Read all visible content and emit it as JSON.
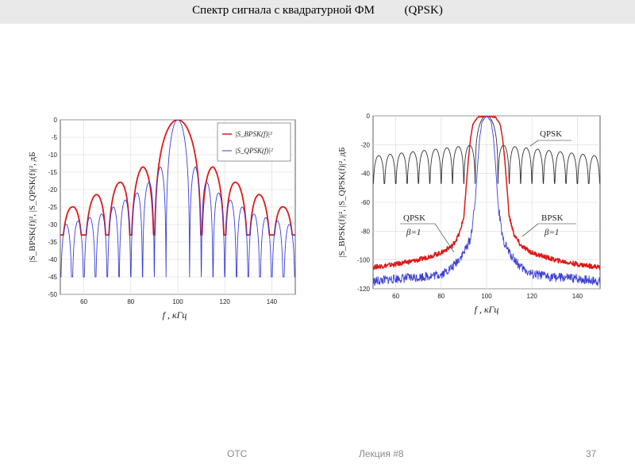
{
  "slide": {
    "title": "Спектр сигнала с квадратурной ФМ          (QPSK)",
    "footer_left": "ОТС",
    "footer_center": "Лекция #8",
    "page_number": "37"
  },
  "colors": {
    "bpsk": "#e01818",
    "qpsk": "#3b3fd6",
    "qpsk_right": "#333333"
  },
  "chart_data": [
    {
      "type": "line",
      "xlabel": "f ,  кГц",
      "ylabel": "|S_BPSK(f)|², |S_QPSK(f)|², дБ",
      "xlim": [
        50,
        150
      ],
      "ylim": [
        -50,
        0
      ],
      "xticks": [
        60,
        80,
        100,
        120,
        140
      ],
      "yticks": [
        0,
        -5,
        -10,
        -15,
        -20,
        -25,
        -30,
        -35,
        -40,
        -45,
        -50
      ],
      "grid": true,
      "legend_position": "top-right",
      "legend": [
        "|S_BPSK(f)|²",
        "|S_QPSK(f)|²"
      ],
      "series": [
        {
          "name": "|S_BPSK(f)|²",
          "color": "#e01818",
          "model": "sinc2",
          "center": 100,
          "null_spacing": 10,
          "floor_db": -33,
          "sidelobe_peaks": [
            {
              "f": 85,
              "db": -13.5
            },
            {
              "f": 115,
              "db": -13.5
            },
            {
              "f": 75,
              "db": -18
            },
            {
              "f": 125,
              "db": -18
            },
            {
              "f": 65,
              "db": -21.5
            },
            {
              "f": 135,
              "db": -21.5
            },
            {
              "f": 55,
              "db": -25
            },
            {
              "f": 145,
              "db": -25
            }
          ]
        },
        {
          "name": "|S_QPSK(f)|²",
          "color": "#3b3fd6",
          "model": "sinc2",
          "center": 100,
          "null_spacing": 5,
          "floor_db": -45,
          "sidelobe_peaks": [
            {
              "f": 92.5,
              "db": -13.5
            },
            {
              "f": 107.5,
              "db": -13.5
            },
            {
              "f": 87.5,
              "db": -18
            },
            {
              "f": 112.5,
              "db": -18
            },
            {
              "f": 82.5,
              "db": -21
            },
            {
              "f": 117.5,
              "db": -21
            },
            {
              "f": 77.5,
              "db": -23
            },
            {
              "f": 122.5,
              "db": -23
            },
            {
              "f": 72.5,
              "db": -25
            },
            {
              "f": 127.5,
              "db": -25
            },
            {
              "f": 67.5,
              "db": -27
            },
            {
              "f": 132.5,
              "db": -27
            },
            {
              "f": 62.5,
              "db": -28
            },
            {
              "f": 137.5,
              "db": -28
            },
            {
              "f": 57.5,
              "db": -29
            },
            {
              "f": 142.5,
              "db": -29
            },
            {
              "f": 52.5,
              "db": -30
            },
            {
              "f": 147.5,
              "db": -30
            }
          ]
        }
      ]
    },
    {
      "type": "line",
      "xlabel": "f ,  кГц",
      "ylabel": "|S_BPSK(f)|², |S_QPSK(f)|², дБ",
      "xlim": [
        50,
        150
      ],
      "ylim": [
        -120,
        0
      ],
      "xticks": [
        60,
        80,
        100,
        120,
        140
      ],
      "yticks": [
        0,
        -20,
        -40,
        -60,
        -80,
        -100,
        -120
      ],
      "grid": true,
      "annotations": [
        "QPSK",
        "QPSK β=1",
        "BPSK β=1"
      ],
      "series": [
        {
          "name": "QPSK",
          "color": "#333333",
          "model": "sinc2",
          "center": 100,
          "null_spacing": 5,
          "floor_db": -47,
          "sidelobe_level_db": -20,
          "sidelobe_edge_db": -28
        },
        {
          "name": "BPSK β=1",
          "color": "#e01818",
          "model": "raised_cosine",
          "center": 100,
          "points": [
            [
              50,
              -105
            ],
            [
              60,
              -103
            ],
            [
              70,
              -100
            ],
            [
              80,
              -95
            ],
            [
              85,
              -90
            ],
            [
              88,
              -82
            ],
            [
              90,
              -70
            ],
            [
              91,
              -50
            ],
            [
              92,
              -30
            ],
            [
              93,
              -15
            ],
            [
              94,
              -6
            ],
            [
              96,
              -1
            ],
            [
              100,
              0
            ],
            [
              104,
              -1
            ],
            [
              106,
              -6
            ],
            [
              107,
              -15
            ],
            [
              108,
              -30
            ],
            [
              109,
              -50
            ],
            [
              110,
              -70
            ],
            [
              112,
              -82
            ],
            [
              115,
              -90
            ],
            [
              120,
              -95
            ],
            [
              130,
              -100
            ],
            [
              140,
              -103
            ],
            [
              150,
              -105
            ]
          ]
        },
        {
          "name": "QPSK β=1",
          "color": "#3b3fd6",
          "model": "raised_cosine",
          "center": 100,
          "points": [
            [
              50,
              -115
            ],
            [
              60,
              -113
            ],
            [
              70,
              -112
            ],
            [
              80,
              -110
            ],
            [
              85,
              -105
            ],
            [
              90,
              -95
            ],
            [
              93,
              -85
            ],
            [
              95,
              -60
            ],
            [
              96,
              -35
            ],
            [
              97,
              -15
            ],
            [
              98,
              -4
            ],
            [
              100,
              0
            ],
            [
              102,
              -4
            ],
            [
              103,
              -15
            ],
            [
              104,
              -35
            ],
            [
              105,
              -60
            ],
            [
              107,
              -85
            ],
            [
              110,
              -95
            ],
            [
              115,
              -105
            ],
            [
              120,
              -110
            ],
            [
              130,
              -112
            ],
            [
              140,
              -113
            ],
            [
              150,
              -115
            ]
          ]
        }
      ]
    }
  ],
  "labels": {
    "right_qpsk": "QPSK",
    "right_qpsk_beta_name": "QPSK",
    "right_qpsk_beta": "β=1",
    "right_bpsk_beta_name": "BPSK",
    "right_bpsk_beta": "β=1"
  }
}
